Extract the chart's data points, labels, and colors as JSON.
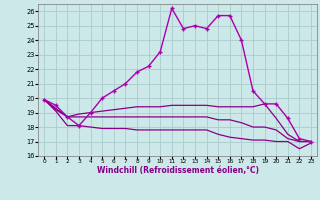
{
  "xlabel": "Windchill (Refroidissement éolien,°C)",
  "xlim": [
    -0.5,
    23.5
  ],
  "ylim": [
    16,
    26.5
  ],
  "yticks": [
    16,
    17,
    18,
    19,
    20,
    21,
    22,
    23,
    24,
    25,
    26
  ],
  "xticks": [
    0,
    1,
    2,
    3,
    4,
    5,
    6,
    7,
    8,
    9,
    10,
    11,
    12,
    13,
    14,
    15,
    16,
    17,
    18,
    19,
    20,
    21,
    22,
    23
  ],
  "background_color": "#cce8e8",
  "grid_color": "#aacccc",
  "line_color": "#880088",
  "marker_color": "#aa00aa",
  "main_line": [
    19.9,
    19.5,
    18.7,
    18.1,
    19.0,
    20.0,
    20.5,
    21.0,
    21.8,
    22.2,
    23.2,
    26.2,
    24.8,
    25.0,
    24.8,
    25.7,
    25.7,
    24.0,
    20.5,
    19.6,
    19.6,
    18.6,
    17.2,
    17.0
  ],
  "line2": [
    19.9,
    19.3,
    18.7,
    18.9,
    19.0,
    19.1,
    19.2,
    19.3,
    19.4,
    19.4,
    19.4,
    19.5,
    19.5,
    19.5,
    19.5,
    19.4,
    19.4,
    19.4,
    19.4,
    19.6,
    18.6,
    17.5,
    17.0,
    17.0
  ],
  "line3": [
    19.9,
    19.2,
    18.7,
    18.7,
    18.7,
    18.7,
    18.7,
    18.7,
    18.7,
    18.7,
    18.7,
    18.7,
    18.7,
    18.7,
    18.7,
    18.5,
    18.5,
    18.3,
    18.0,
    18.0,
    17.8,
    17.2,
    17.0,
    17.0
  ],
  "line4": [
    19.9,
    19.1,
    18.1,
    18.1,
    18.0,
    17.9,
    17.9,
    17.9,
    17.8,
    17.8,
    17.8,
    17.8,
    17.8,
    17.8,
    17.8,
    17.5,
    17.3,
    17.2,
    17.1,
    17.1,
    17.0,
    17.0,
    16.5,
    16.9
  ]
}
